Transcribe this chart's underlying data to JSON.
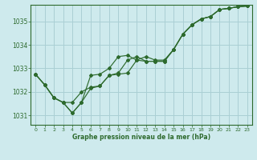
{
  "background_color": "#ceeaed",
  "grid_color": "#aacfd4",
  "line_color": "#2d6a2d",
  "text_color": "#2d6a2d",
  "xlabel": "Graphe pression niveau de la mer (hPa)",
  "xlim": [
    -0.5,
    23.5
  ],
  "ylim": [
    1030.6,
    1035.7
  ],
  "xticks": [
    0,
    1,
    2,
    3,
    4,
    5,
    6,
    7,
    8,
    9,
    10,
    11,
    12,
    13,
    14,
    15,
    16,
    17,
    18,
    19,
    20,
    21,
    22,
    23
  ],
  "yticks": [
    1031,
    1032,
    1033,
    1034,
    1035
  ],
  "line1_x": [
    0,
    1,
    2,
    3,
    4,
    5,
    6,
    7,
    8,
    9,
    10,
    11,
    12,
    13,
    14,
    15,
    16,
    17,
    18,
    19,
    20,
    21,
    22,
    23
  ],
  "line1_y": [
    1032.75,
    1032.3,
    1031.75,
    1031.55,
    1031.1,
    1031.55,
    1032.15,
    1032.25,
    1032.7,
    1032.8,
    1033.35,
    1033.5,
    1033.3,
    1033.3,
    1033.3,
    1033.8,
    1034.45,
    1034.85,
    1035.1,
    1035.2,
    1035.5,
    1035.55,
    1035.62,
    1035.65
  ],
  "line2_x": [
    0,
    1,
    2,
    3,
    4,
    5,
    6,
    7,
    8,
    9,
    10,
    11,
    12,
    13,
    14,
    15,
    16,
    17,
    18,
    19,
    20,
    21,
    22,
    23
  ],
  "line2_y": [
    1032.75,
    1032.3,
    1031.75,
    1031.55,
    1031.1,
    1031.55,
    1032.7,
    1032.75,
    1033.0,
    1033.5,
    1033.55,
    1033.35,
    1033.3,
    1033.3,
    1033.3,
    1033.8,
    1034.45,
    1034.85,
    1035.1,
    1035.2,
    1035.5,
    1035.55,
    1035.62,
    1035.65
  ],
  "line3_x": [
    0,
    1,
    2,
    3,
    4,
    5,
    6,
    7,
    8,
    9,
    10,
    11,
    12,
    13,
    14,
    15,
    16,
    17,
    18,
    19,
    20,
    21,
    22,
    23
  ],
  "line3_y": [
    1032.75,
    1032.3,
    1031.75,
    1031.55,
    1031.55,
    1032.0,
    1032.2,
    1032.25,
    1032.7,
    1032.75,
    1032.8,
    1033.35,
    1033.5,
    1033.35,
    1033.35,
    1033.8,
    1034.45,
    1034.85,
    1035.1,
    1035.2,
    1035.5,
    1035.55,
    1035.62,
    1035.65
  ]
}
